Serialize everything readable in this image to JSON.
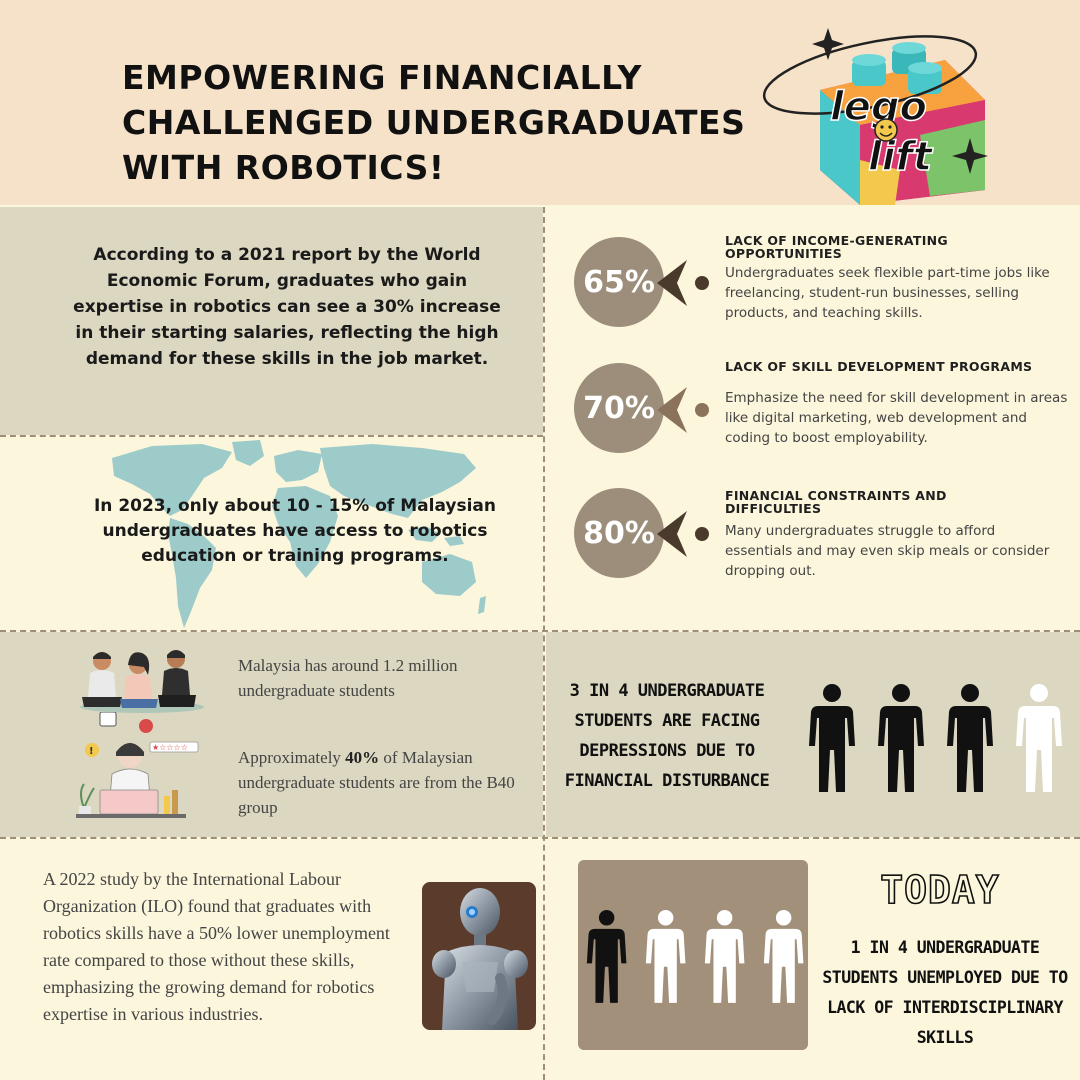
{
  "header": {
    "title_lines": [
      "EMPOWERING FINANCIALLY",
      "CHALLENGED UNDERGRADUATES",
      "WITH ROBOTICS!"
    ],
    "logo_text_1": "lego",
    "logo_text_2": "lift",
    "logo_icon": "lego-brick-logo"
  },
  "wef": {
    "text": "According to a 2021 report by the World Economic Forum, graduates who gain expertise in robotics can see a 30% increase in their starting salaries, reflecting the high demand for these skills in the job market."
  },
  "access": {
    "text": "In 2023, only about 10 - 15% of Malaysian undergraduates have access to robotics education or training programs.",
    "map_icon": "world-map"
  },
  "stats": [
    {
      "percent": "65%",
      "title": "LACK OF INCOME-GENERATING OPPORTUNITIES",
      "desc": "Undergraduates seek flexible part-time jobs like freelancing, student-run businesses, selling products, and teaching skills."
    },
    {
      "percent": "70%",
      "title": "LACK OF SKILL DEVELOPMENT PROGRAMS",
      "desc": "Emphasize the need for skill development in areas like digital marketing, web development and coding to boost employability."
    },
    {
      "percent": "80%",
      "title": "FINANCIAL CONSTRAINTS AND DIFFICULTIES",
      "desc": "Many undergraduates struggle to afford essentials and may even skip meals or consider dropping out."
    }
  ],
  "malaysia": {
    "line1": "Malaysia has around 1.2 million undergraduate students",
    "line2_pre": "Approximately ",
    "line2_bold": "40%",
    "line2_post": " of Malaysian undergraduate students are from the B40 group"
  },
  "depression": {
    "text": "3 IN 4 UNDERGRADUATE STUDENTS ARE FACING DEPRESSIONS DUE TO FINANCIAL DISTURBANCE",
    "figures": 4,
    "highlighted": 3
  },
  "ilo": {
    "text": "A 2022 study by the International Labour Organization (ILO) found that graduates with robotics skills have a 50% lower unemployment rate compared to those without these skills, emphasizing the growing demand for robotics expertise in various industries."
  },
  "today": {
    "title": "TODAY",
    "text": "1 IN 4 UNDERGRADUATE STUDENTS UNEMPLOYED DUE TO LACK OF INTERDISCIPLINARY SKILLS",
    "figures": 4,
    "highlighted": 1
  },
  "colors": {
    "header_bg": "#F6E2C8",
    "page_bg": "#FBF6DC",
    "panel_tan": "#DCD7C0",
    "circle": "#9C8E7A",
    "arrow_dark": "#4A3A2C",
    "arrow_light": "#8B735B",
    "today_box": "#A2907A"
  }
}
